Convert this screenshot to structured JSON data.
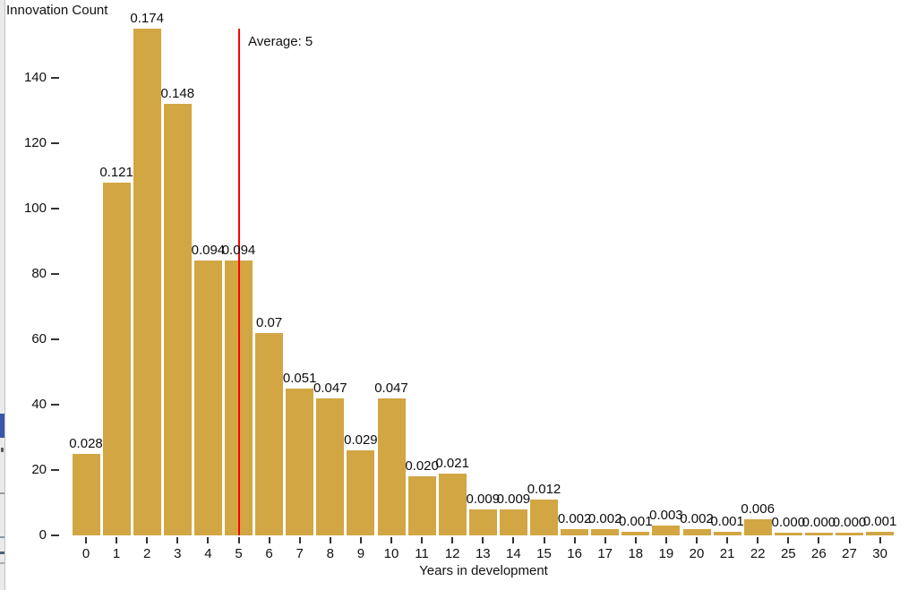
{
  "chart_data": {
    "type": "bar",
    "title": "",
    "y_axis_title": "Innovation Count",
    "x_axis_title": "Years in development",
    "categories": [
      "0",
      "1",
      "2",
      "3",
      "4",
      "5",
      "6",
      "7",
      "8",
      "9",
      "10",
      "11",
      "12",
      "13",
      "14",
      "15",
      "16",
      "17",
      "18",
      "19",
      "20",
      "21",
      "22",
      "25",
      "26",
      "27",
      "30"
    ],
    "value_labels": [
      "0.028",
      "0.121",
      "0.174",
      "0.148",
      "0.094",
      "0.094",
      "0.07",
      "0.051",
      "0.047",
      "0.029",
      "0.047",
      "0.020",
      "0.021",
      "0.009",
      "0.009",
      "0.012",
      "0.002",
      "0.002",
      "0.001",
      "0.003",
      "0.002",
      "0.001",
      "0.006",
      "0.000",
      "0.000",
      "0.000",
      "0.001"
    ],
    "values": [
      0.028,
      0.121,
      0.174,
      0.148,
      0.094,
      0.094,
      0.07,
      0.051,
      0.047,
      0.029,
      0.047,
      0.02,
      0.021,
      0.009,
      0.009,
      0.012,
      0.002,
      0.002,
      0.001,
      0.003,
      0.002,
      0.001,
      0.006,
      0.0,
      0.0,
      0.0,
      0.001
    ],
    "counts_estimated": [
      25,
      108,
      155,
      132,
      84,
      84,
      62,
      45,
      42,
      26,
      42,
      18,
      19,
      8,
      8,
      11,
      2,
      2,
      1,
      3,
      2,
      1,
      5,
      0.7,
      0.7,
      0.7,
      1
    ],
    "y_ticks": [
      0,
      20,
      40,
      60,
      80,
      100,
      120,
      140
    ],
    "ylim": [
      0,
      155
    ],
    "grid": false,
    "legend": "none",
    "bar_color": "#d2a643",
    "average_line": {
      "category": "5",
      "label": "Average: 5",
      "color": "#ff0000"
    }
  }
}
